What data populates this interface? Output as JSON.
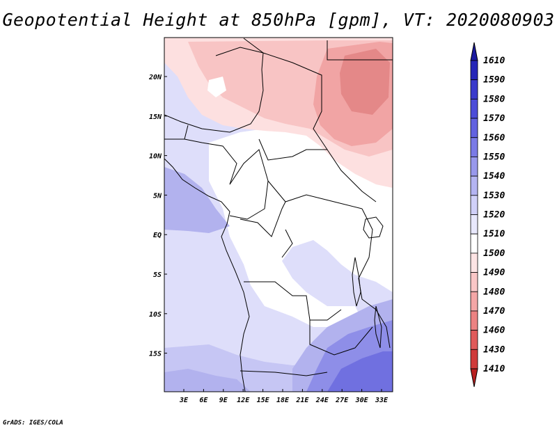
{
  "title": "Geopotential Height at 850hPa [gpm], VT: 2020080903",
  "footer": "GrADS: IGES/COLA",
  "lat_ticks": [
    "20N",
    "15N",
    "10N",
    "5N",
    "EQ",
    "5S",
    "10S",
    "15S"
  ],
  "lon_ticks": [
    "3E",
    "6E",
    "9E",
    "12E",
    "15E",
    "18E",
    "21E",
    "24E",
    "27E",
    "30E",
    "33E"
  ],
  "colorbar": {
    "levels": [
      "1610",
      "1590",
      "1580",
      "1570",
      "1560",
      "1550",
      "1540",
      "1530",
      "1520",
      "1510",
      "1500",
      "1490",
      "1480",
      "1470",
      "1460",
      "1430",
      "1410"
    ],
    "colors": [
      "#1b1aa0",
      "#2626b8",
      "#3a3acc",
      "#4c4cd8",
      "#6262e0",
      "#7a7ae6",
      "#9898ec",
      "#b4b4f2",
      "#d0d0f8",
      "#e8e8fc",
      "#ffffff",
      "#fde4e4",
      "#f9c6c6",
      "#f4a6a6",
      "#ec8282",
      "#e05a5a",
      "#d03a3a",
      "#b82020"
    ]
  },
  "field_colors": {
    "white": "#ffffff",
    "blue1": "#dedefa",
    "blue2": "#c6c6f4",
    "blue3": "#b2b2ee",
    "blue4": "#8e8ee8",
    "blue5": "#7070e0",
    "pink1": "#fde0e0",
    "pink2": "#f8c4c4",
    "pink3": "#f1a4a4",
    "pink4": "#e48888"
  }
}
